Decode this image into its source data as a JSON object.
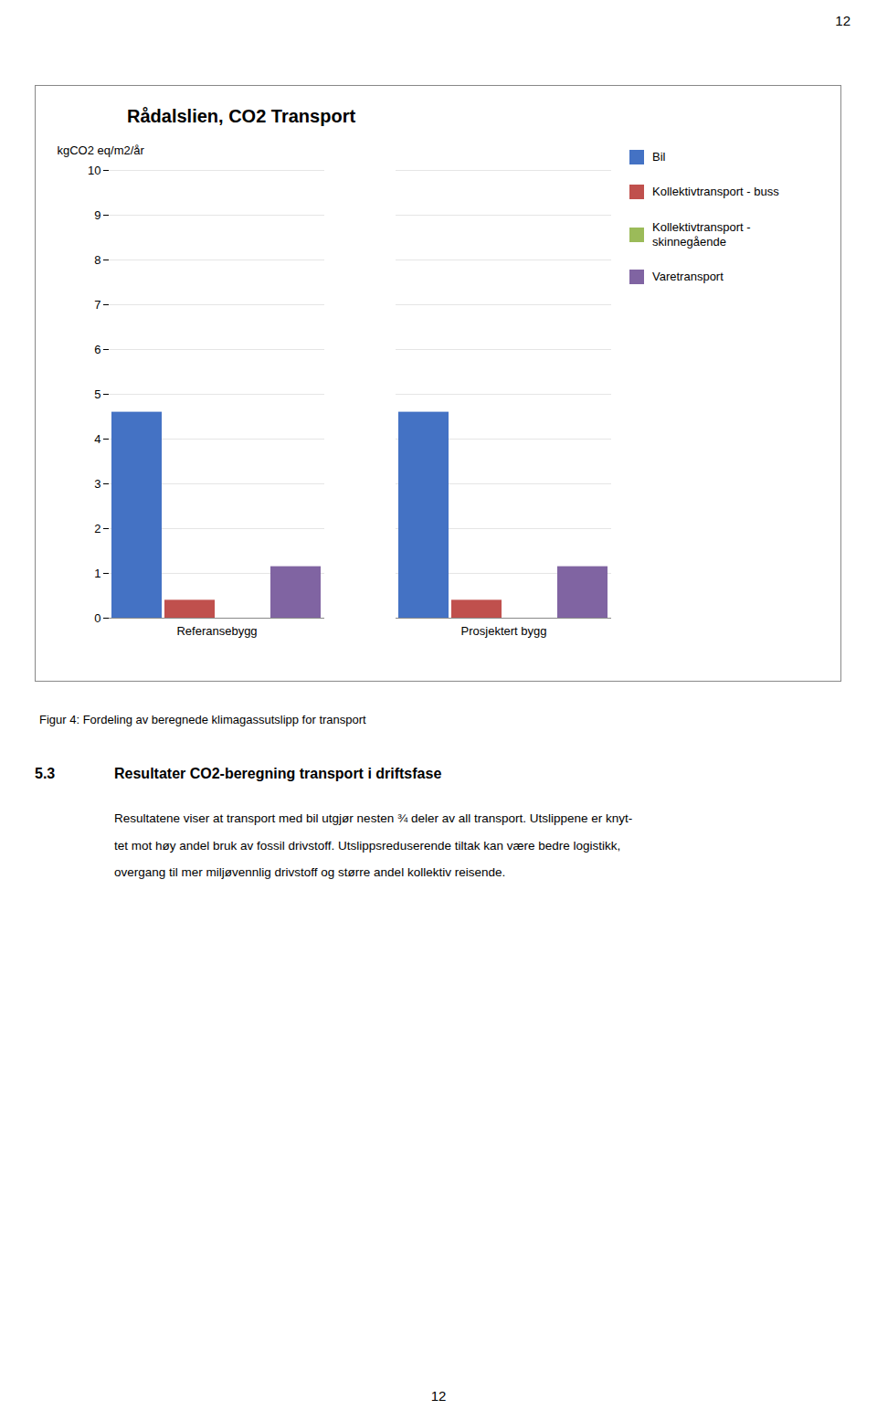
{
  "chart_data": {
    "type": "bar",
    "title": "Rådalslien, CO2 Transport",
    "ylabel": "kgCO2 eq/m2/år",
    "categories": [
      "Referansebygg",
      "Prosjektert bygg"
    ],
    "series": [
      {
        "name": "Bil",
        "color": "#4472C4",
        "values": [
          4.6,
          4.6
        ]
      },
      {
        "name": "Kollektivtransport - buss",
        "color": "#C0504D",
        "values": [
          0.4,
          0.4
        ]
      },
      {
        "name": "Kollektivtransport -\nskinnegående",
        "color": "#9BBB59",
        "values": [
          0.0,
          0.0
        ]
      },
      {
        "name": "Varetransport",
        "color": "#8064A2",
        "values": [
          1.15,
          1.15
        ]
      }
    ],
    "ylim": [
      0,
      10
    ],
    "yticks": [
      0,
      1,
      2,
      3,
      4,
      5,
      6,
      7,
      8,
      9,
      10
    ],
    "grid": true,
    "legend": "right",
    "caption": "Figur 4: Fordeling av beregnede klimagassutslipp for transport",
    "annotations": [
      "12",
      "5.3",
      "Resultater CO2-beregning transport i driftsfase",
      "Resultatene viser at transport med bil utgjør nesten ¾ deler av all transport. Utslippene er knyt-",
      "tet mot høy andel bruk av fossil drivstoff. Utslippsreduserende tiltak kan være bedre logistikk,",
      "overgang til mer miljøvennlig drivstoff og større andel kollektiv reisende.",
      "12"
    ]
  }
}
